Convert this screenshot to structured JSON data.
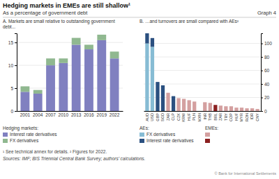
{
  "title": "Hedging markets in EMEs are still shallow¹",
  "subtitle": "As a percentage of government debt",
  "annotations": [
    "Graph 4",
    "¹ See technical annex for details.   ² Figures for 2022.",
    "Sources: IMF; BIS Triennial Central Bank Survey; authors’ calculations.",
    "© Bank for International Settlements"
  ],
  "chart_data": [
    {
      "type": "bar",
      "stacked": true,
      "title": "A. Markets are small relative to outstanding government\ndebt...",
      "categories": [
        "2001",
        "2004",
        "2007",
        "2010",
        "2013",
        "2016",
        "2019",
        "2022"
      ],
      "series": [
        {
          "name": "Interest rate derivatives",
          "color": "#8080c0",
          "values": [
            4.2,
            3.8,
            10.0,
            10.5,
            14.5,
            13.5,
            15.5,
            11.5
          ]
        },
        {
          "name": "FX derivatives",
          "color": "#90b890",
          "values": [
            1.2,
            0.8,
            1.5,
            1.0,
            1.5,
            1.0,
            1.2,
            1.5
          ]
        }
      ],
      "ylim": [
        0,
        17
      ],
      "yticks": [
        0,
        5,
        10,
        15
      ],
      "grid": true,
      "legend": "bottom",
      "annotations": [
        "Hedging markets:"
      ]
    },
    {
      "type": "bar",
      "stacked": true,
      "title": "B. …and turnovers are small compared with AEs²",
      "categories": [
        "AUD",
        "USD",
        "GBP",
        "SGD",
        "ZAR",
        "CLP",
        "CZK",
        "KRW",
        "HUF",
        "PLN",
        "MXN",
        "INR",
        "THB",
        "BRL",
        "ZAR",
        "TRY",
        "COP",
        "HUF",
        "MYR",
        "RON",
        "IDR",
        "CNY"
      ],
      "series": [
        {
          "name": "FX derivatives",
          "color": "#87bcd4",
          "values": [
            100,
            95,
            0,
            0,
            0,
            0,
            0,
            0,
            0,
            0,
            0,
            0,
            0,
            0,
            0,
            0,
            0,
            0,
            0,
            0,
            0,
            0
          ]
        },
        {
          "name": "Interest rate derivatives",
          "color": "#2b5080",
          "values": [
            15,
            13,
            43,
            38,
            0,
            22,
            0,
            0,
            0,
            0,
            0,
            0,
            0,
            0,
            0,
            0,
            0,
            0,
            0,
            0,
            0,
            0
          ]
        },
        {
          "color": "#d4a0a0",
          "values": [
            0,
            0,
            0,
            0,
            27,
            0,
            19,
            18,
            16,
            14,
            0,
            13,
            12,
            0,
            8,
            7,
            7,
            5,
            5,
            4,
            4,
            3
          ]
        },
        {
          "color": "#8b2020",
          "values": [
            0,
            0,
            0,
            0,
            0,
            0,
            0,
            0,
            0,
            0,
            0,
            0,
            0,
            9,
            0,
            0,
            0,
            0,
            0,
            0,
            0,
            0
          ]
        }
      ],
      "ylim": [
        0,
        115
      ],
      "yticks": [
        0,
        20,
        40,
        60,
        80,
        100
      ],
      "grid": true,
      "legend": "bottom",
      "annotations": [
        "AEs:",
        "EMEs:"
      ]
    }
  ]
}
